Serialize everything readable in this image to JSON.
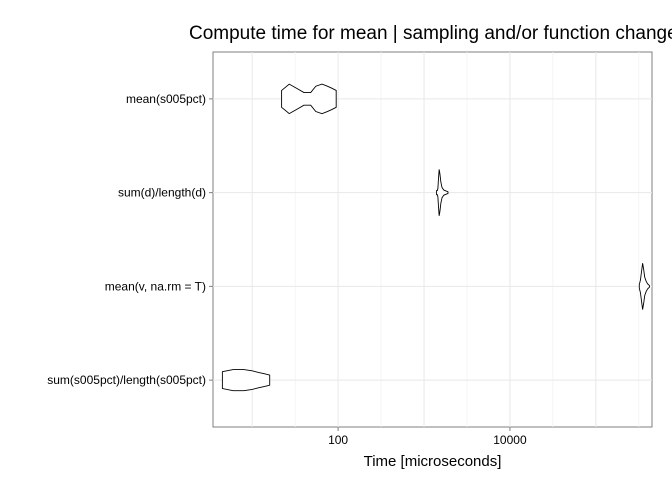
{
  "chart_data": {
    "type": "violin",
    "title": "Compute time for mean | sampling and/or function change",
    "xlabel": "Time [microseconds]",
    "ylabel": "",
    "x_scale": "log10",
    "xlim": [
      3.5,
      450000
    ],
    "x_ticks": [
      {
        "value": 100,
        "label": "100"
      },
      {
        "value": 10000,
        "label": "10000"
      }
    ],
    "grid": true,
    "orientation": "horizontal",
    "categories": [
      "mean(s005pct)",
      "sum(d)/length(d)",
      "mean(v, na.rm = T)",
      "sum(s005pct)/length(s005pct)"
    ],
    "series": [
      {
        "category": "mean(s005pct)",
        "min": 22,
        "max": 95,
        "median": 60,
        "profile": [
          [
            22,
            0.2
          ],
          [
            27,
            0.35
          ],
          [
            33,
            0.25
          ],
          [
            40,
            0.15
          ],
          [
            48,
            0.15
          ],
          [
            55,
            0.3
          ],
          [
            65,
            0.35
          ],
          [
            75,
            0.3
          ],
          [
            85,
            0.25
          ],
          [
            95,
            0.2
          ]
        ]
      },
      {
        "category": "sum(d)/length(d)",
        "min": 1400,
        "max": 1900,
        "median": 1480,
        "profile": [
          [
            1400,
            0.05
          ],
          [
            1430,
            0.05
          ],
          [
            1450,
            0.1
          ],
          [
            1470,
            0.3
          ],
          [
            1500,
            0.55
          ],
          [
            1530,
            0.45
          ],
          [
            1570,
            0.25
          ],
          [
            1620,
            0.12
          ],
          [
            1700,
            0.06
          ],
          [
            1800,
            0.04
          ],
          [
            1900,
            0.02
          ]
        ]
      },
      {
        "category": "mean(v, na.rm = T)",
        "min": 320000,
        "max": 420000,
        "median": 345000,
        "profile": [
          [
            320000,
            0.04
          ],
          [
            330000,
            0.15
          ],
          [
            340000,
            0.35
          ],
          [
            350000,
            0.55
          ],
          [
            360000,
            0.4
          ],
          [
            370000,
            0.22
          ],
          [
            385000,
            0.12
          ],
          [
            400000,
            0.06
          ],
          [
            420000,
            0.02
          ]
        ]
      },
      {
        "category": "sum(s005pct)/length(s005pct)",
        "min": 4.5,
        "max": 16,
        "median": 10,
        "profile": [
          [
            4.5,
            0.2
          ],
          [
            6,
            0.25
          ],
          [
            8,
            0.25
          ],
          [
            10,
            0.22
          ],
          [
            12,
            0.18
          ],
          [
            14,
            0.15
          ],
          [
            16,
            0.12
          ]
        ]
      }
    ]
  }
}
